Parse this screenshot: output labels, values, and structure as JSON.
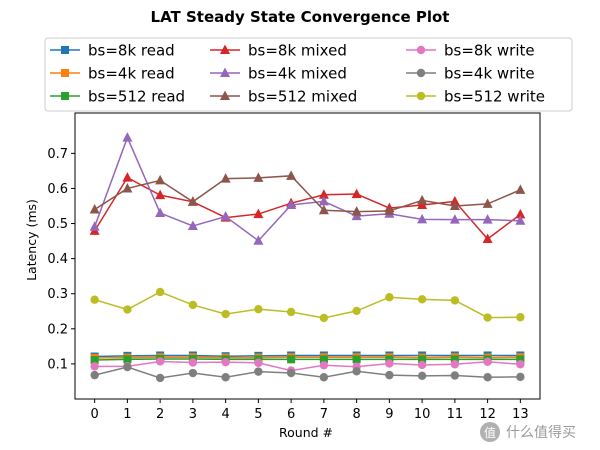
{
  "chart_data": {
    "type": "line",
    "title": "LAT Steady State Convergence Plot",
    "xlabel": "Round #",
    "ylabel": "Latency (ms)",
    "x": [
      0,
      1,
      2,
      3,
      4,
      5,
      6,
      7,
      8,
      9,
      10,
      11,
      12,
      13
    ],
    "xlim": [
      -0.6,
      13.6
    ],
    "ylim": [
      0.0,
      0.815
    ],
    "yticks": [
      0.1,
      0.2,
      0.3,
      0.4,
      0.5,
      0.6,
      0.7
    ],
    "ytick_labels": [
      "0.1",
      "0.2",
      "0.3",
      "0.4",
      "0.5",
      "0.6",
      "0.7"
    ],
    "xtick_labels": [
      "0",
      "1",
      "2",
      "3",
      "4",
      "5",
      "6",
      "7",
      "8",
      "9",
      "10",
      "11",
      "12",
      "13"
    ],
    "grid": false,
    "legend_placement": "top",
    "series": [
      {
        "name": "bs=8k read",
        "color": "#1f77b4",
        "marker": "square",
        "values": [
          0.121,
          0.123,
          0.124,
          0.124,
          0.122,
          0.123,
          0.124,
          0.124,
          0.124,
          0.124,
          0.124,
          0.124,
          0.124,
          0.124
        ]
      },
      {
        "name": "bs=4k read",
        "color": "#ff7f0e",
        "marker": "square",
        "values": [
          0.117,
          0.118,
          0.119,
          0.119,
          0.118,
          0.118,
          0.119,
          0.119,
          0.119,
          0.119,
          0.118,
          0.119,
          0.118,
          0.119
        ]
      },
      {
        "name": "bs=512 read",
        "color": "#2ca02c",
        "marker": "square",
        "values": [
          0.111,
          0.113,
          0.114,
          0.114,
          0.113,
          0.113,
          0.113,
          0.113,
          0.113,
          0.113,
          0.113,
          0.113,
          0.113,
          0.113
        ]
      },
      {
        "name": "bs=8k mixed",
        "color": "#d62728",
        "marker": "triangle",
        "values": [
          0.479,
          0.631,
          0.581,
          0.562,
          0.517,
          0.527,
          0.558,
          0.582,
          0.584,
          0.544,
          0.553,
          0.563,
          0.456,
          0.526
        ]
      },
      {
        "name": "bs=4k mixed",
        "color": "#9467bd",
        "marker": "triangle",
        "values": [
          0.491,
          0.745,
          0.53,
          0.493,
          0.52,
          0.451,
          0.553,
          0.563,
          0.521,
          0.528,
          0.512,
          0.511,
          0.511,
          0.508
        ]
      },
      {
        "name": "bs=512 mixed",
        "color": "#8c564b",
        "marker": "triangle",
        "values": [
          0.54,
          0.6,
          0.623,
          0.562,
          0.628,
          0.63,
          0.636,
          0.538,
          0.534,
          0.536,
          0.566,
          0.55,
          0.556,
          0.596
        ]
      },
      {
        "name": "bs=8k write",
        "color": "#e377c2",
        "marker": "circle",
        "values": [
          0.093,
          0.093,
          0.107,
          0.104,
          0.105,
          0.103,
          0.081,
          0.096,
          0.092,
          0.101,
          0.097,
          0.099,
          0.106,
          0.099
        ]
      },
      {
        "name": "bs=4k write",
        "color": "#7f7f7f",
        "marker": "circle",
        "values": [
          0.068,
          0.091,
          0.06,
          0.074,
          0.062,
          0.078,
          0.074,
          0.062,
          0.079,
          0.068,
          0.066,
          0.067,
          0.062,
          0.063
        ]
      },
      {
        "name": "bs=512 write",
        "color": "#bcbd22",
        "marker": "circle",
        "values": [
          0.283,
          0.255,
          0.305,
          0.268,
          0.242,
          0.256,
          0.248,
          0.231,
          0.251,
          0.29,
          0.284,
          0.281,
          0.232,
          0.233
        ]
      }
    ]
  },
  "watermark": "值 什么值得买"
}
